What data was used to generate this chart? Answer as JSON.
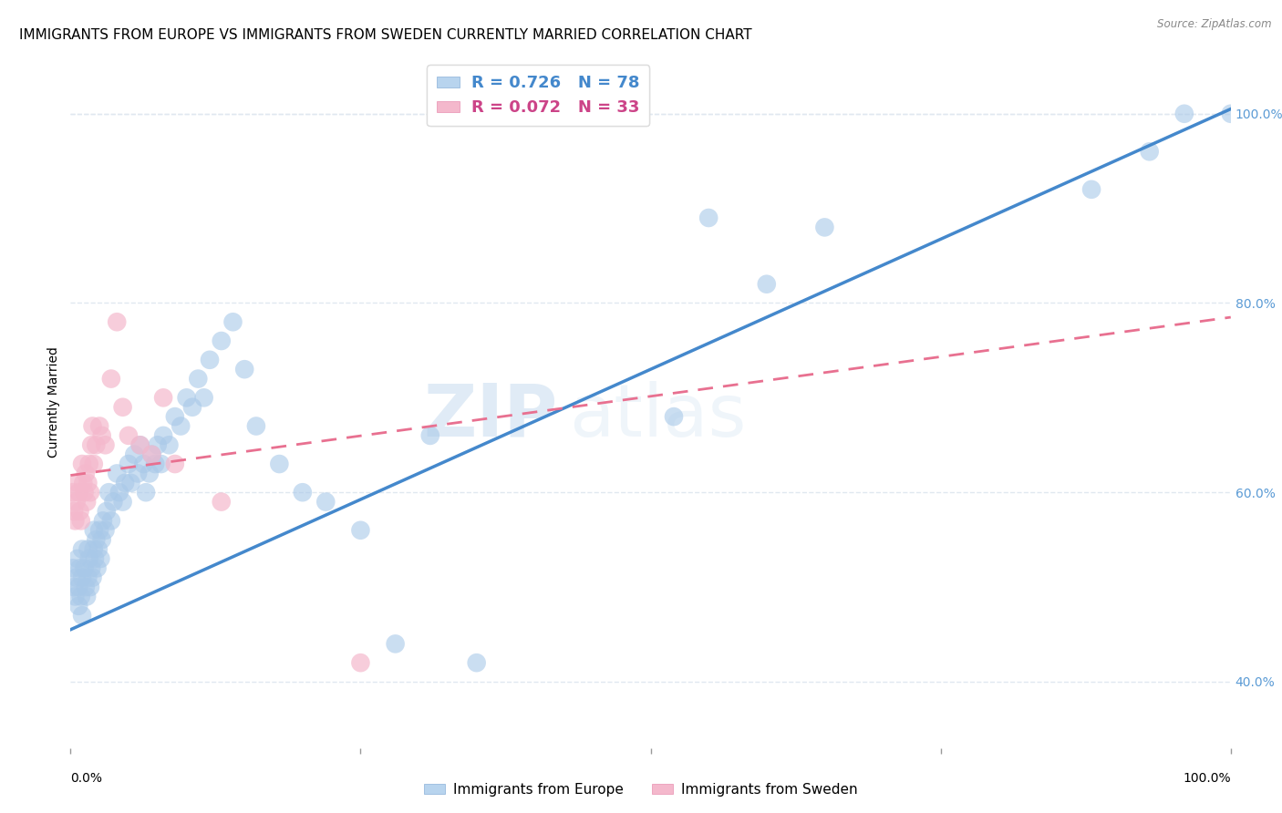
{
  "title": "IMMIGRANTS FROM EUROPE VS IMMIGRANTS FROM SWEDEN CURRENTLY MARRIED CORRELATION CHART",
  "source": "Source: ZipAtlas.com",
  "ylabel": "Currently Married",
  "right_yticks": [
    "40.0%",
    "60.0%",
    "80.0%",
    "100.0%"
  ],
  "right_ytick_vals": [
    0.4,
    0.6,
    0.8,
    1.0
  ],
  "legend_bottom": [
    "Immigrants from Europe",
    "Immigrants from Sweden"
  ],
  "blue_color": "#a8c8e8",
  "pink_color": "#f4b8cc",
  "blue_edge_color": "#7aaad0",
  "pink_edge_color": "#e890b0",
  "blue_line_color": "#4488cc",
  "pink_line_color": "#e87090",
  "watermark_zip": "ZIP",
  "watermark_atlas": "atlas",
  "xlim": [
    0.0,
    1.0
  ],
  "ylim": [
    0.33,
    1.06
  ],
  "background_color": "#ffffff",
  "grid_color": "#e0e8f0",
  "title_fontsize": 11,
  "axis_label_fontsize": 10,
  "tick_fontsize": 10,
  "blue_line_x": [
    0.0,
    1.0
  ],
  "blue_line_y": [
    0.455,
    1.005
  ],
  "pink_line_x": [
    0.0,
    1.0
  ],
  "pink_line_y": [
    0.618,
    0.785
  ],
  "blue_scatter_x": [
    0.002,
    0.003,
    0.004,
    0.005,
    0.006,
    0.007,
    0.007,
    0.008,
    0.009,
    0.01,
    0.01,
    0.01,
    0.012,
    0.013,
    0.014,
    0.015,
    0.015,
    0.016,
    0.017,
    0.018,
    0.019,
    0.02,
    0.02,
    0.021,
    0.022,
    0.023,
    0.024,
    0.025,
    0.026,
    0.027,
    0.028,
    0.03,
    0.031,
    0.033,
    0.035,
    0.037,
    0.04,
    0.042,
    0.045,
    0.047,
    0.05,
    0.052,
    0.055,
    0.058,
    0.06,
    0.063,
    0.065,
    0.068,
    0.07,
    0.073,
    0.075,
    0.078,
    0.08,
    0.085,
    0.09,
    0.095,
    0.1,
    0.105,
    0.11,
    0.115,
    0.12,
    0.13,
    0.14,
    0.15,
    0.16,
    0.18,
    0.2,
    0.22,
    0.25,
    0.28,
    0.31,
    0.35,
    0.52,
    0.55,
    0.6,
    0.65,
    0.88,
    0.93,
    0.96,
    1.0
  ],
  "blue_scatter_y": [
    0.52,
    0.5,
    0.49,
    0.51,
    0.53,
    0.5,
    0.48,
    0.52,
    0.49,
    0.51,
    0.54,
    0.47,
    0.52,
    0.5,
    0.49,
    0.51,
    0.54,
    0.53,
    0.5,
    0.52,
    0.51,
    0.54,
    0.56,
    0.53,
    0.55,
    0.52,
    0.54,
    0.56,
    0.53,
    0.55,
    0.57,
    0.56,
    0.58,
    0.6,
    0.57,
    0.59,
    0.62,
    0.6,
    0.59,
    0.61,
    0.63,
    0.61,
    0.64,
    0.62,
    0.65,
    0.63,
    0.6,
    0.62,
    0.64,
    0.63,
    0.65,
    0.63,
    0.66,
    0.65,
    0.68,
    0.67,
    0.7,
    0.69,
    0.72,
    0.7,
    0.74,
    0.76,
    0.78,
    0.73,
    0.67,
    0.63,
    0.6,
    0.59,
    0.56,
    0.44,
    0.66,
    0.42,
    0.68,
    0.89,
    0.82,
    0.88,
    0.92,
    0.96,
    1.0,
    1.0
  ],
  "pink_scatter_x": [
    0.002,
    0.003,
    0.004,
    0.005,
    0.006,
    0.007,
    0.008,
    0.009,
    0.01,
    0.011,
    0.012,
    0.013,
    0.014,
    0.015,
    0.016,
    0.017,
    0.018,
    0.019,
    0.02,
    0.022,
    0.025,
    0.027,
    0.03,
    0.035,
    0.04,
    0.045,
    0.05,
    0.06,
    0.07,
    0.08,
    0.09,
    0.13,
    0.25
  ],
  "pink_scatter_y": [
    0.6,
    0.58,
    0.57,
    0.59,
    0.61,
    0.6,
    0.58,
    0.57,
    0.63,
    0.61,
    0.6,
    0.62,
    0.59,
    0.61,
    0.63,
    0.6,
    0.65,
    0.67,
    0.63,
    0.65,
    0.67,
    0.66,
    0.65,
    0.72,
    0.78,
    0.69,
    0.66,
    0.65,
    0.64,
    0.7,
    0.63,
    0.59,
    0.42
  ]
}
